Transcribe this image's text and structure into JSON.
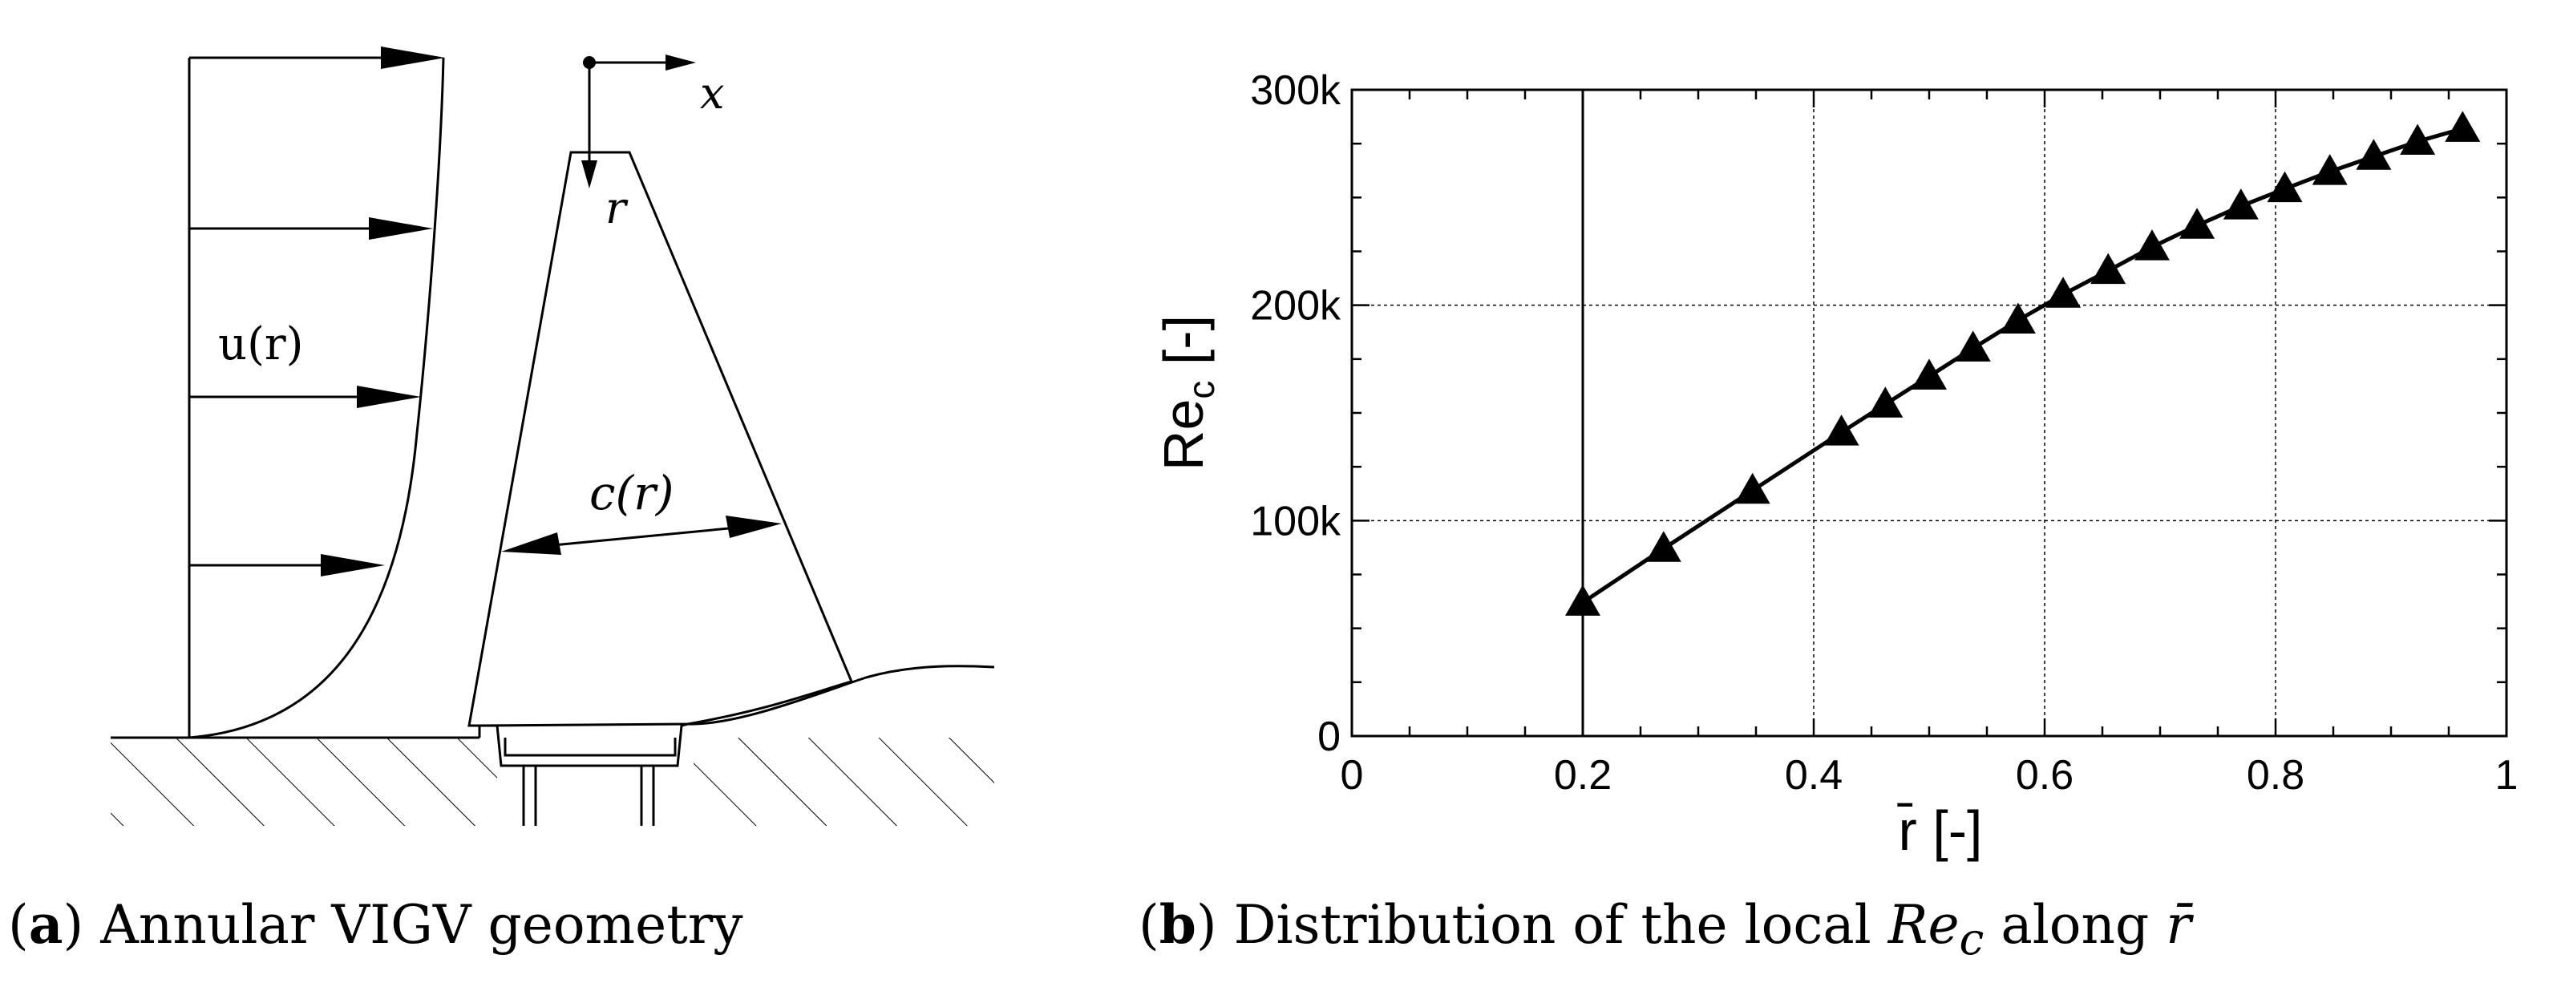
{
  "figure_a": {
    "velocity_label": "u(r)",
    "chord_label": "c(r)",
    "axis_x_label": "x",
    "axis_r_label": "r",
    "caption_tag": "a",
    "caption_text": " Annular VIGV geometry"
  },
  "figure_b": {
    "caption_tag": "b",
    "caption_prefix": " Distribution of the local ",
    "caption_symbol": "Re",
    "caption_subscript": "c",
    "caption_mid": " along ",
    "caption_rbar": "r̄"
  },
  "chart_data": {
    "type": "line",
    "title": "",
    "xlabel": "r̄ [-]",
    "ylabel": "Re",
    "ylabel_subscript": "c",
    "ylabel_suffix": " [-]",
    "xlim": [
      0,
      1
    ],
    "ylim": [
      0,
      300000
    ],
    "x_ticks": [
      0,
      0.2,
      0.4,
      0.6,
      0.8,
      1
    ],
    "x_tick_labels": [
      "0",
      "0.2",
      "0.4",
      "0.6",
      "0.8",
      "1"
    ],
    "y_ticks": [
      0,
      100000,
      200000,
      300000
    ],
    "y_tick_labels": [
      "0",
      "100k",
      "200k",
      "300k"
    ],
    "grid": true,
    "marker": "triangle",
    "series": [
      {
        "x": [
          0.2,
          0.27,
          0.347,
          0.424,
          0.462,
          0.5,
          0.538,
          0.577,
          0.616,
          0.655,
          0.693,
          0.732,
          0.77,
          0.808,
          0.847,
          0.885,
          0.923,
          0.962
        ],
        "y": [
          62000,
          87000,
          114000,
          141000,
          154000,
          167000,
          180000,
          193000,
          205000,
          216000,
          227000,
          237000,
          246000,
          254000,
          262000,
          269000,
          276000,
          282000
        ]
      }
    ],
    "annotations": [
      "vertical reference line at r̄ = 0.2"
    ]
  }
}
